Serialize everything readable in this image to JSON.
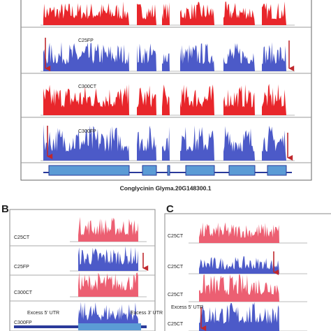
{
  "panel_a": {
    "tracks": [
      "C25FP",
      "C300CT",
      "C300FP"
    ],
    "caption": "Conglycinin Glyma.20G148300.1"
  },
  "panel_b": {
    "label": "B",
    "tracks": [
      "C25CT",
      "C25FP",
      "C300CT",
      "C300FP"
    ],
    "utr5": "Excess 5' UTR",
    "utr3": "Excess 3' UTR"
  },
  "panel_c": {
    "label": "C",
    "tracks": [
      "C25CT",
      "C25CT",
      "C25CT",
      "C25CT"
    ],
    "utr5": "Excess 5' UTR"
  }
}
